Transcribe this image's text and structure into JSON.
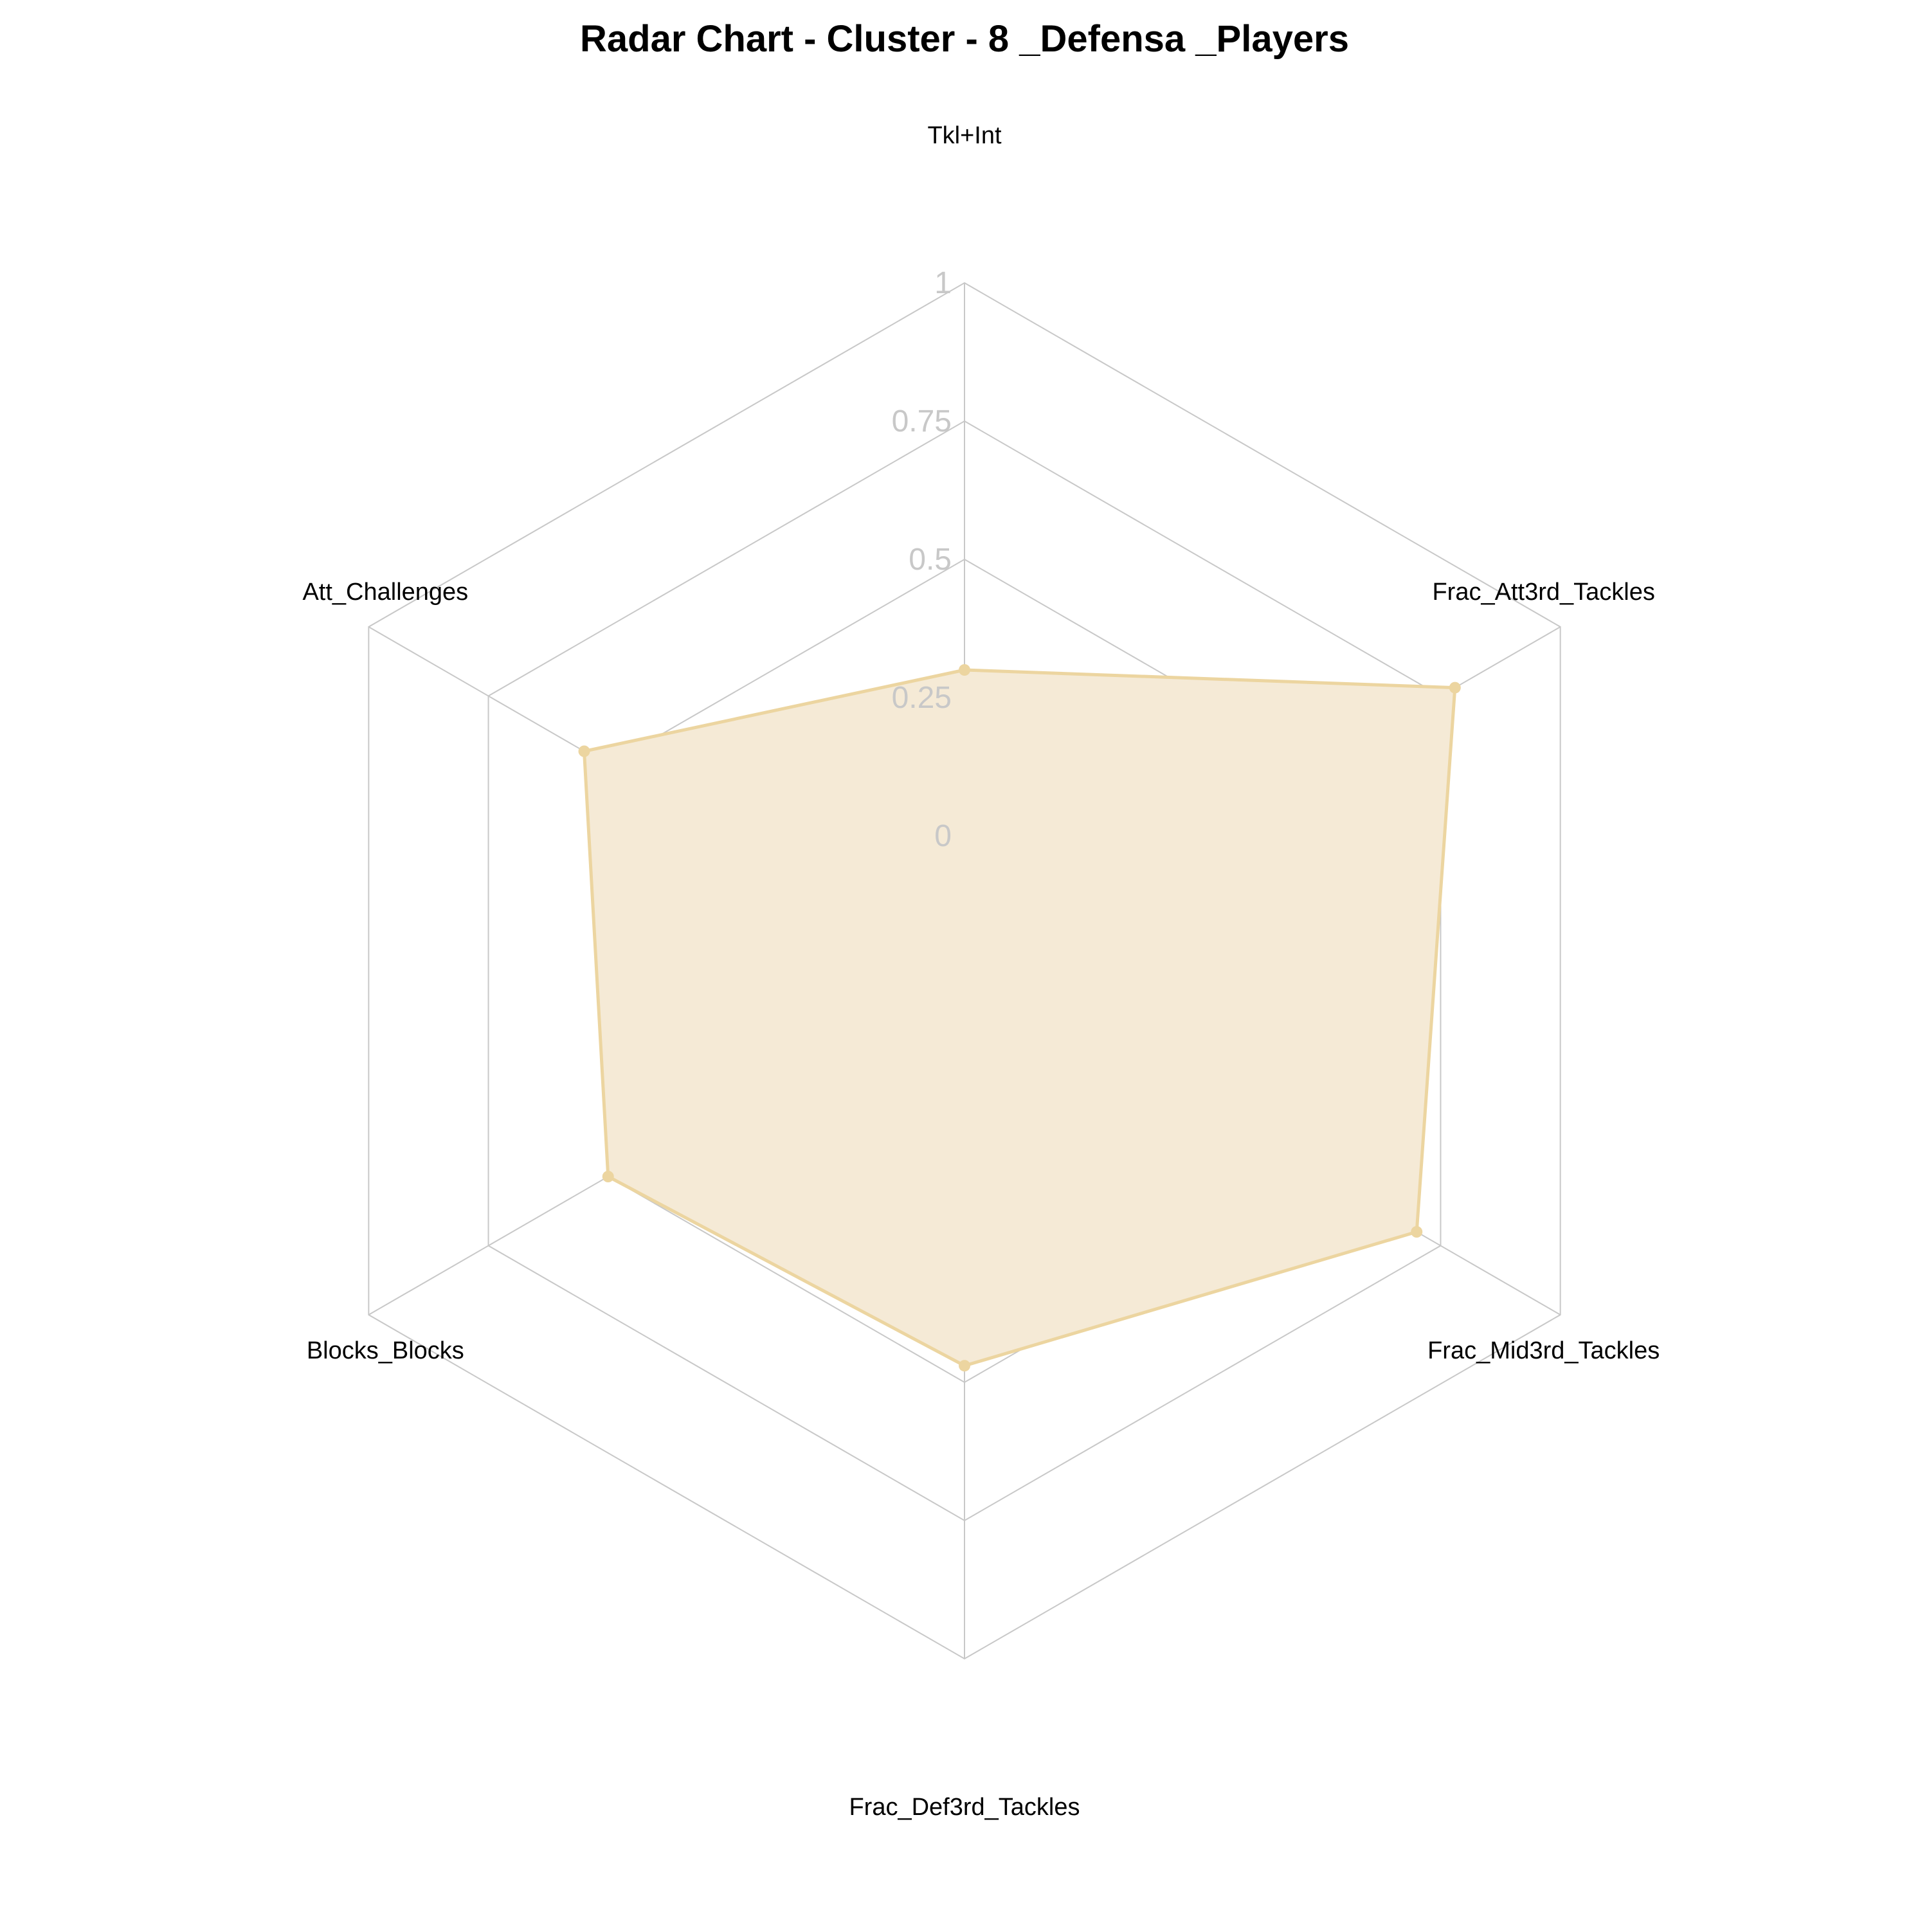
{
  "chart_data": {
    "type": "radar",
    "title": "Radar Chart - Cluster - 8 _Defensa _Players",
    "axes": [
      "Tkl+Int",
      "Frac_Att3rd_Tackles",
      "Frac_Mid3rd_Tackles",
      "Frac_Def3rd_Tackles",
      "Blocks_Blocks",
      "Att_Challenges"
    ],
    "tick_labels": [
      "0",
      "0.25",
      "0.5",
      "0.75",
      "1"
    ],
    "ticks": [
      0,
      0.25,
      0.5,
      0.75,
      1
    ],
    "rlim": [
      0,
      1
    ],
    "grid": true,
    "series": [
      {
        "values": [
          0.3,
          0.78,
          0.7,
          0.47,
          0.5,
          0.55
        ],
        "color": "#ecd5a0",
        "fill_color": "#f5ead6"
      }
    ]
  }
}
